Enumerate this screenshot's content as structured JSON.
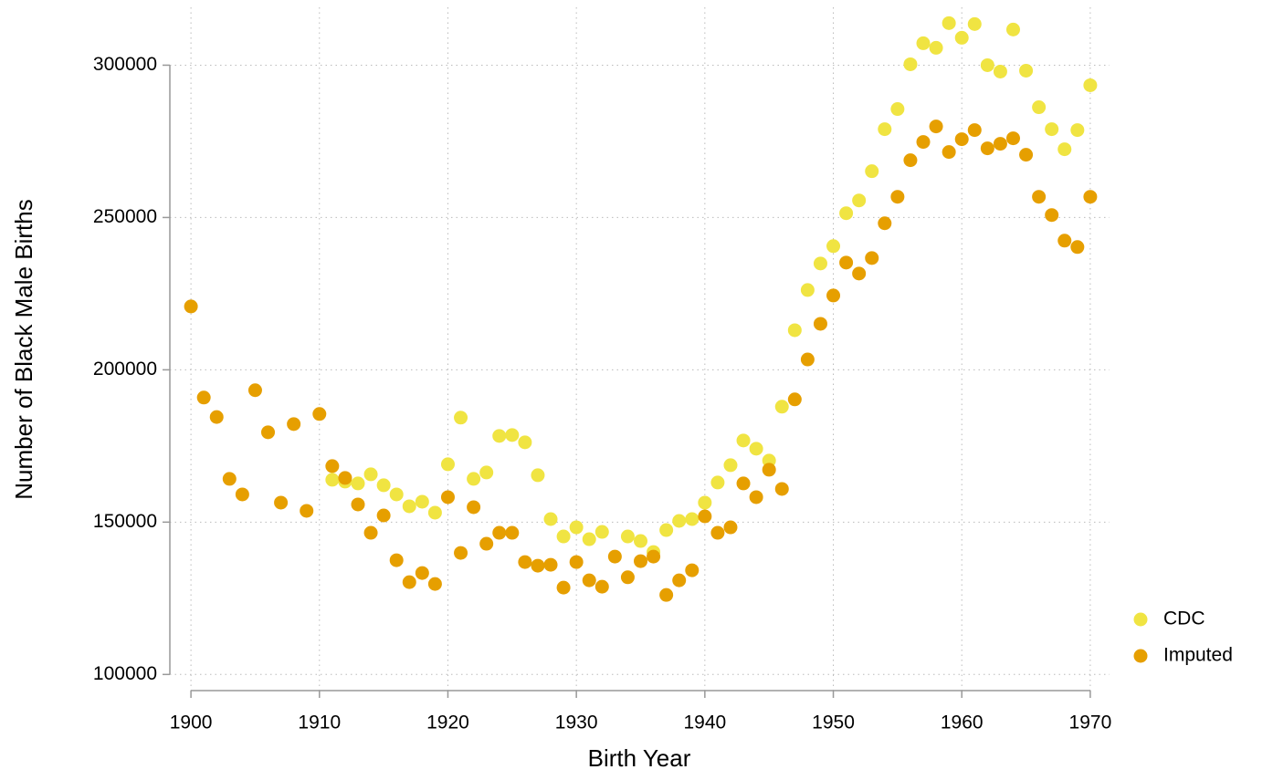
{
  "chart_data": {
    "type": "scatter",
    "x_label": "Birth Year",
    "y_label": "Number of Black Male Births",
    "xlim": [
      1898.5,
      1971.5
    ],
    "xticks": [
      1900,
      1910,
      1920,
      1930,
      1940,
      1950,
      1960,
      1970
    ],
    "ylim": [
      95000,
      319000
    ],
    "yticks": [
      100000,
      150000,
      200000,
      250000,
      300000
    ],
    "grid": true,
    "legend": "right",
    "series": [
      {
        "name": "CDC",
        "color": "#f0e442",
        "x": [
          1911,
          1912,
          1913,
          1914,
          1915,
          1916,
          1917,
          1918,
          1919,
          1920,
          1921,
          1922,
          1923,
          1924,
          1925,
          1926,
          1927,
          1928,
          1929,
          1930,
          1931,
          1932,
          1934,
          1935,
          1936,
          1937,
          1938,
          1939,
          1940,
          1941,
          1942,
          1943,
          1944,
          1945,
          1946,
          1947,
          1948,
          1949,
          1950,
          1951,
          1952,
          1953,
          1954,
          1955,
          1956,
          1957,
          1958,
          1959,
          1960,
          1961,
          1962,
          1963,
          1964,
          1965,
          1966,
          1967,
          1968,
          1969,
          1970
        ],
        "values": [
          163900,
          163300,
          162700,
          165700,
          162100,
          159100,
          155200,
          156700,
          153100,
          169000,
          184300,
          164200,
          166300,
          178300,
          178600,
          176200,
          165400,
          151000,
          145300,
          148300,
          144400,
          146800,
          145300,
          143800,
          140200,
          147400,
          150400,
          151000,
          156400,
          163000,
          168700,
          176800,
          174100,
          170200,
          187900,
          213000,
          226200,
          234900,
          240600,
          251400,
          255600,
          265200,
          279000,
          285600,
          300300,
          307200,
          305700,
          313800,
          309000,
          313500,
          300000,
          297900,
          311700,
          298200,
          286200,
          279000,
          272400,
          278700,
          293400
        ]
      },
      {
        "name": "Imputed",
        "color": "#e69f00",
        "x": [
          1900,
          1901,
          1902,
          1903,
          1904,
          1905,
          1906,
          1907,
          1908,
          1909,
          1910,
          1911,
          1912,
          1913,
          1914,
          1915,
          1916,
          1917,
          1918,
          1919,
          1920,
          1921,
          1922,
          1923,
          1924,
          1925,
          1926,
          1927,
          1928,
          1929,
          1930,
          1931,
          1932,
          1933,
          1934,
          1935,
          1936,
          1937,
          1938,
          1939,
          1940,
          1941,
          1942,
          1943,
          1944,
          1945,
          1946,
          1947,
          1948,
          1949,
          1950,
          1951,
          1952,
          1953,
          1954,
          1955,
          1956,
          1957,
          1958,
          1959,
          1960,
          1961,
          1962,
          1963,
          1964,
          1965,
          1966,
          1967,
          1968,
          1969,
          1970
        ],
        "values": [
          220800,
          190900,
          184500,
          164200,
          159100,
          193300,
          179500,
          156400,
          182200,
          153700,
          185500,
          168400,
          164500,
          155800,
          146500,
          152200,
          137500,
          130300,
          133300,
          129700,
          158200,
          139900,
          154900,
          142900,
          146500,
          146500,
          136900,
          135700,
          136000,
          128500,
          136900,
          130900,
          128800,
          138700,
          131900,
          137200,
          138700,
          126100,
          130900,
          134200,
          151900,
          146500,
          148300,
          162700,
          158200,
          167200,
          160900,
          190300,
          203400,
          215100,
          224400,
          235200,
          231600,
          236700,
          248100,
          256800,
          268800,
          274800,
          279900,
          271500,
          275700,
          278700,
          272700,
          274200,
          276000,
          270600,
          256800,
          250800,
          242400,
          240300,
          256800
        ]
      }
    ]
  }
}
